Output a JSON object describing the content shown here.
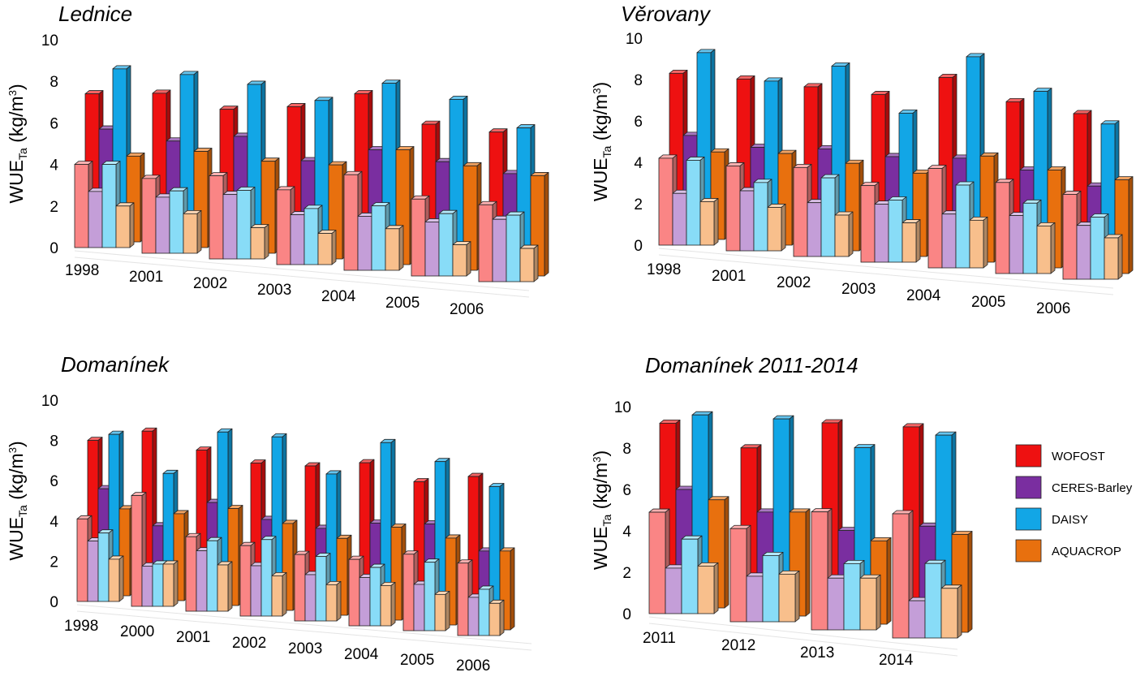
{
  "chart_data": [
    {
      "type": "bar",
      "title": "Lednice",
      "ylabel": "WUE",
      "ylabel_sub": "Ta",
      "ylabel_unit_pre": " (kg/m",
      "ylabel_unit_sup": "3",
      "ylabel_unit_post": ")",
      "ylim": [
        0,
        10
      ],
      "yticks": [
        "0",
        "2",
        "4",
        "6",
        "8",
        "10"
      ],
      "categories": [
        "1998",
        "2001",
        "2002",
        "2003",
        "2004",
        "2005",
        "2006"
      ],
      "series": [
        {
          "name": "WOFOST",
          "values": [
            7.4,
            7.7,
            7.2,
            7.6,
            8.5,
            7.3,
            7.2
          ]
        },
        {
          "name": "CERES-Barley",
          "values": [
            5.7,
            5.4,
            5.9,
            5.0,
            5.8,
            5.5,
            5.2
          ]
        },
        {
          "name": "DAISY",
          "values": [
            8.6,
            8.6,
            8.4,
            7.9,
            9.0,
            8.5,
            7.4
          ]
        },
        {
          "name": "AQUACROP",
          "values": [
            4.4,
            4.9,
            4.7,
            4.8,
            5.8,
            5.3,
            5.1
          ]
        },
        {
          "name": "WOFOST (fallow)",
          "values": [
            4.0,
            3.6,
            4.0,
            3.6,
            4.6,
            3.7,
            3.7
          ]
        },
        {
          "name": "CERES-Barley (fallow)",
          "values": [
            2.7,
            2.7,
            3.1,
            2.4,
            2.6,
            2.6,
            3.0
          ]
        },
        {
          "name": "DAISY (fallow)",
          "values": [
            4.0,
            3.0,
            3.3,
            2.7,
            3.1,
            3.0,
            3.2
          ]
        },
        {
          "name": "AQUACROP (fallow)",
          "values": [
            2.0,
            1.9,
            1.5,
            1.5,
            2.0,
            1.5,
            1.6
          ]
        }
      ]
    },
    {
      "type": "bar",
      "title": "Věrovany",
      "ylabel": "WUE",
      "ylabel_sub": "Ta",
      "ylabel_unit_pre": " (kg/m",
      "ylabel_unit_sup": "3",
      "ylabel_unit_post": ")",
      "ylim": [
        0,
        10
      ],
      "yticks": [
        "0",
        "2",
        "4",
        "6",
        "8",
        "10"
      ],
      "categories": [
        "1998",
        "2001",
        "2002",
        "2003",
        "2004",
        "2005",
        "2006"
      ],
      "series": [
        {
          "name": "WOFOST",
          "values": [
            8.3,
            8.3,
            8.2,
            8.1,
            9.2,
            8.3,
            8.0
          ]
        },
        {
          "name": "CERES-Barley",
          "values": [
            5.3,
            5.0,
            5.2,
            5.1,
            5.3,
            5.0,
            4.5
          ]
        },
        {
          "name": "DAISY",
          "values": [
            9.3,
            8.2,
            9.2,
            7.2,
            10.2,
            8.8,
            7.5
          ]
        },
        {
          "name": "AQUACROP",
          "values": [
            4.5,
            4.7,
            4.5,
            4.3,
            5.4,
            5.0,
            4.8
          ]
        },
        {
          "name": "WOFOST (fallow)",
          "values": [
            4.2,
            4.1,
            4.3,
            3.7,
            4.8,
            4.4,
            4.1
          ]
        },
        {
          "name": "CERES-Barley (fallow)",
          "values": [
            2.5,
            2.9,
            2.6,
            2.8,
            2.6,
            2.8,
            2.6
          ]
        },
        {
          "name": "DAISY (fallow)",
          "values": [
            4.1,
            3.3,
            3.8,
            3.0,
            4.0,
            3.4,
            3.0
          ]
        },
        {
          "name": "AQUACROP (fallow)",
          "values": [
            2.1,
            2.1,
            2.0,
            1.9,
            2.3,
            2.3,
            2.0
          ]
        }
      ]
    },
    {
      "type": "bar",
      "title": "Domanínek",
      "ylabel": "WUE",
      "ylabel_sub": "Ta",
      "ylabel_unit_pre": " (kg/m",
      "ylabel_unit_sup": "3",
      "ylabel_unit_post": ")",
      "ylim": [
        0,
        10
      ],
      "yticks": [
        "0",
        "2",
        "4",
        "6",
        "8",
        "10"
      ],
      "categories": [
        "1998",
        "2000",
        "2001",
        "2002",
        "2003",
        "2004",
        "2005",
        "2006"
      ],
      "series": [
        {
          "name": "WOFOST",
          "values": [
            8.0,
            8.7,
            8.0,
            7.6,
            7.7,
            8.1,
            7.4,
            7.9
          ]
        },
        {
          "name": "CERES-Barley",
          "values": [
            5.6,
            4.0,
            5.4,
            4.8,
            4.6,
            5.1,
            5.3,
            4.2
          ]
        },
        {
          "name": "DAISY",
          "values": [
            8.3,
            6.6,
            8.9,
            8.9,
            7.3,
            9.1,
            8.4,
            7.4
          ]
        },
        {
          "name": "AQUACROP",
          "values": [
            4.6,
            4.6,
            5.1,
            4.6,
            4.1,
            4.9,
            4.6,
            4.2
          ]
        },
        {
          "name": "WOFOST (fallow)",
          "values": [
            4.1,
            5.5,
            3.7,
            3.5,
            3.3,
            3.3,
            3.8,
            3.6
          ]
        },
        {
          "name": "CERES-Barley (fallow)",
          "values": [
            3.0,
            2.0,
            3.0,
            2.5,
            2.3,
            2.4,
            2.3,
            1.9
          ]
        },
        {
          "name": "DAISY (fallow)",
          "values": [
            3.4,
            2.1,
            3.5,
            3.8,
            3.2,
            2.9,
            3.4,
            2.3
          ]
        },
        {
          "name": "AQUACROP (fallow)",
          "values": [
            2.1,
            2.1,
            2.3,
            2.0,
            1.8,
            2.0,
            1.8,
            1.6
          ]
        }
      ]
    },
    {
      "type": "bar",
      "title": "Domanínek 2011-2014",
      "ylabel": "WUE",
      "ylabel_sub": "Ta",
      "ylabel_unit_pre": " (kg/m",
      "ylabel_unit_sup": "3",
      "ylabel_unit_post": ")",
      "ylim": [
        0,
        10
      ],
      "yticks": [
        "0",
        "2",
        "4",
        "6",
        "8",
        "10"
      ],
      "categories": [
        "2011",
        "2012",
        "2013",
        "2014"
      ],
      "series": [
        {
          "name": "WOFOST",
          "values": [
            9.2,
            8.4,
            10.0,
            10.2
          ]
        },
        {
          "name": "CERES-Barley",
          "values": [
            6.0,
            5.3,
            4.8,
            5.4
          ]
        },
        {
          "name": "DAISY",
          "values": [
            9.6,
            9.8,
            8.8,
            9.8
          ]
        },
        {
          "name": "AQUACROP",
          "values": [
            5.5,
            5.3,
            4.3,
            5.0
          ]
        },
        {
          "name": "WOFOST (fallow)",
          "values": [
            4.9,
            4.5,
            5.7,
            6.0
          ]
        },
        {
          "name": "CERES-Barley (fallow)",
          "values": [
            2.2,
            2.2,
            2.5,
            1.8
          ]
        },
        {
          "name": "DAISY (fallow)",
          "values": [
            3.6,
            3.2,
            3.2,
            3.6
          ]
        },
        {
          "name": "AQUACROP (fallow)",
          "values": [
            2.3,
            2.3,
            2.5,
            2.4
          ]
        }
      ]
    }
  ],
  "legend": [
    {
      "label": "WOFOST",
      "color": "#ee1111"
    },
    {
      "label": "CERES-Barley",
      "color": "#7a2ea0"
    },
    {
      "label": "DAISY",
      "color": "#12a6e6"
    },
    {
      "label": "AQUACROP",
      "color": "#e8700e"
    }
  ],
  "colors": {
    "front": [
      "#fa8585",
      "#c49ed8",
      "#88dcf7",
      "#f8bf8c"
    ],
    "back": [
      "#ee1111",
      "#7a2ea0",
      "#12a6e6",
      "#e8700e"
    ]
  }
}
